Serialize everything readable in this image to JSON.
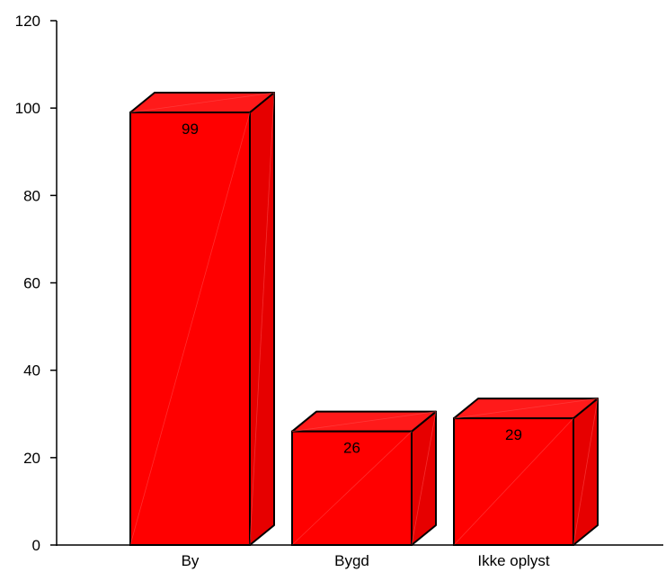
{
  "chart_data": {
    "type": "bar",
    "style": "3d",
    "categories": [
      "By",
      "Bygd",
      "Ikke oplyst"
    ],
    "values": [
      99,
      26,
      29
    ],
    "data_labels": [
      "99",
      "26",
      "29"
    ],
    "title": "",
    "xlabel": "",
    "ylabel": "",
    "ylim": [
      0,
      120
    ],
    "yticks": [
      0,
      20,
      40,
      60,
      80,
      100,
      120
    ],
    "ytick_labels": [
      "0",
      "20",
      "40",
      "60",
      "80",
      "100",
      "120"
    ],
    "grid": false,
    "legend": "none",
    "colors": {
      "bar_front": "#ff0000",
      "bar_top": "#ff1a1a",
      "bar_side": "#e60000",
      "outline": "#000000",
      "axis": "#000000"
    }
  }
}
